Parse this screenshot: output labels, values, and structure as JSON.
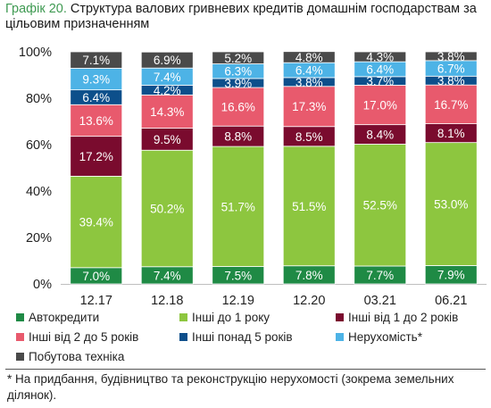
{
  "title": {
    "number": "Графік 20.",
    "text": " Структура валових гривневих кредитів домашнім господарствам за цільовим призначенням"
  },
  "footnote": "* На придбання, будівництво та реконструкцію нерухомості (зокрема земельних ділянок).",
  "chart_data": {
    "type": "bar",
    "stacked": true,
    "categories": [
      "12.17",
      "12.18",
      "12.19",
      "12.20",
      "03.21",
      "06.21"
    ],
    "y_tick_labels": [
      "0%",
      "20%",
      "40%",
      "60%",
      "80%",
      "100%"
    ],
    "ylim": [
      0,
      100
    ],
    "grid": false,
    "legend_position": "bottom",
    "series": [
      {
        "name": "Автокредити",
        "color": "#1f8a45",
        "values": [
          7.0,
          7.4,
          7.5,
          7.8,
          7.7,
          7.9
        ]
      },
      {
        "name": "Інші до 1 року",
        "color": "#8dc63f",
        "values": [
          39.4,
          50.2,
          51.7,
          51.5,
          52.5,
          53.0
        ]
      },
      {
        "name": "Інші від 1 до 2 років",
        "color": "#7a0b2e",
        "values": [
          17.2,
          9.5,
          8.8,
          8.5,
          8.4,
          8.1
        ]
      },
      {
        "name": "Інші від 2 до 5 років",
        "color": "#e85a6d",
        "values": [
          13.6,
          14.3,
          16.6,
          17.3,
          17.0,
          16.7
        ]
      },
      {
        "name": "Інші понад 5 років",
        "color": "#0d4f8b",
        "values": [
          6.4,
          4.2,
          3.9,
          3.8,
          3.7,
          3.8
        ]
      },
      {
        "name": "Нерухомість*",
        "color": "#4db3e6",
        "values": [
          9.3,
          7.4,
          6.3,
          6.4,
          6.4,
          6.7
        ]
      },
      {
        "name": "Побутова техніка",
        "color": "#4a4a4a",
        "values": [
          7.1,
          6.9,
          5.2,
          4.8,
          4.3,
          3.8
        ]
      }
    ]
  }
}
